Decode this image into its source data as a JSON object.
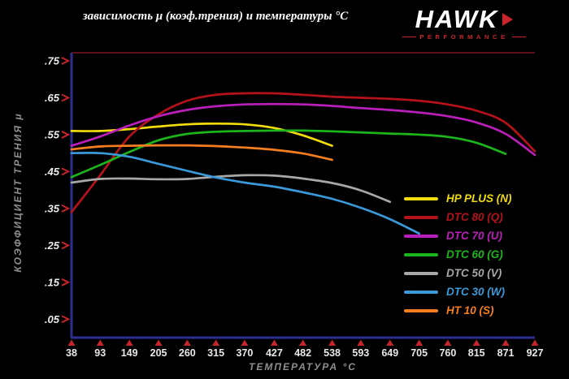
{
  "header": {
    "logo": {
      "brand": "HAWK",
      "sub": "PERFORMANCE"
    }
  },
  "chart_data": {
    "type": "line",
    "title": "зависимость μ (коэф.трения) и температуры °C",
    "xlabel": "ТЕМПЕРАТУРА °C",
    "ylabel": "КОЭФФИЦИЕНТ ТРЕНИЯ μ",
    "xlim": [
      38,
      927
    ],
    "ylim": [
      0,
      0.75
    ],
    "grid": false,
    "legend_position": "lower right",
    "background_color": "#000000",
    "axis_color": "#2e2e8f",
    "top_border_color": "#5a1015",
    "tick_arrow_color": "#c8242b",
    "x_ticks": [
      38,
      93,
      149,
      205,
      260,
      315,
      370,
      427,
      482,
      538,
      593,
      649,
      705,
      760,
      815,
      871,
      927
    ],
    "y_ticks": [
      0.05,
      0.15,
      0.25,
      0.35,
      0.45,
      0.55,
      0.65,
      0.75
    ],
    "y_tick_labels": [
      ".05",
      ".15",
      ".25",
      ".35",
      ".45",
      ".55",
      ".65",
      ".75"
    ],
    "series": [
      {
        "name": "HP PLUS (N)",
        "color": "#f2dc0c",
        "x": [
          38,
          93,
          149,
          205,
          260,
          315,
          370,
          427,
          482,
          538
        ],
        "values": [
          0.56,
          0.56,
          0.565,
          0.572,
          0.578,
          0.58,
          0.578,
          0.568,
          0.548,
          0.52
        ]
      },
      {
        "name": "DTC 80 (Q)",
        "color": "#b5121b",
        "x": [
          38,
          93,
          149,
          205,
          260,
          315,
          370,
          427,
          482,
          538,
          593,
          649,
          705,
          760,
          815,
          871,
          927
        ],
        "values": [
          0.34,
          0.44,
          0.545,
          0.605,
          0.642,
          0.658,
          0.662,
          0.662,
          0.658,
          0.653,
          0.65,
          0.647,
          0.642,
          0.632,
          0.615,
          0.582,
          0.505
        ]
      },
      {
        "name": "DTC 70 (U)",
        "color": "#bb1fbb",
        "x": [
          38,
          93,
          149,
          205,
          260,
          315,
          370,
          427,
          482,
          538,
          593,
          649,
          705,
          760,
          815,
          871,
          927
        ],
        "values": [
          0.52,
          0.545,
          0.575,
          0.6,
          0.617,
          0.627,
          0.632,
          0.633,
          0.632,
          0.628,
          0.622,
          0.617,
          0.61,
          0.6,
          0.583,
          0.552,
          0.495
        ]
      },
      {
        "name": "DTC 60 (G)",
        "color": "#1cb51c",
        "x": [
          38,
          93,
          149,
          205,
          260,
          315,
          370,
          427,
          482,
          538,
          593,
          649,
          705,
          760,
          815,
          871
        ],
        "values": [
          0.435,
          0.468,
          0.503,
          0.535,
          0.552,
          0.558,
          0.56,
          0.561,
          0.561,
          0.559,
          0.556,
          0.553,
          0.55,
          0.544,
          0.528,
          0.498
        ]
      },
      {
        "name": "DTC 50 (V)",
        "color": "#a8a8a8",
        "x": [
          38,
          93,
          149,
          205,
          260,
          315,
          370,
          427,
          482,
          538,
          593,
          649
        ],
        "values": [
          0.42,
          0.43,
          0.431,
          0.429,
          0.43,
          0.436,
          0.44,
          0.439,
          0.431,
          0.419,
          0.399,
          0.368
        ]
      },
      {
        "name": "DTC 30 (W)",
        "color": "#3a99d9",
        "x": [
          38,
          93,
          149,
          205,
          260,
          315,
          370,
          427,
          482,
          538,
          593,
          649,
          705
        ],
        "values": [
          0.5,
          0.5,
          0.49,
          0.471,
          0.452,
          0.434,
          0.42,
          0.409,
          0.394,
          0.376,
          0.352,
          0.321,
          0.282
        ]
      },
      {
        "name": "HT 10 (S)",
        "color": "#f57e20",
        "x": [
          38,
          93,
          149,
          205,
          260,
          315,
          370,
          427,
          482,
          538
        ],
        "values": [
          0.51,
          0.518,
          0.52,
          0.521,
          0.521,
          0.519,
          0.515,
          0.509,
          0.499,
          0.482
        ]
      }
    ]
  }
}
